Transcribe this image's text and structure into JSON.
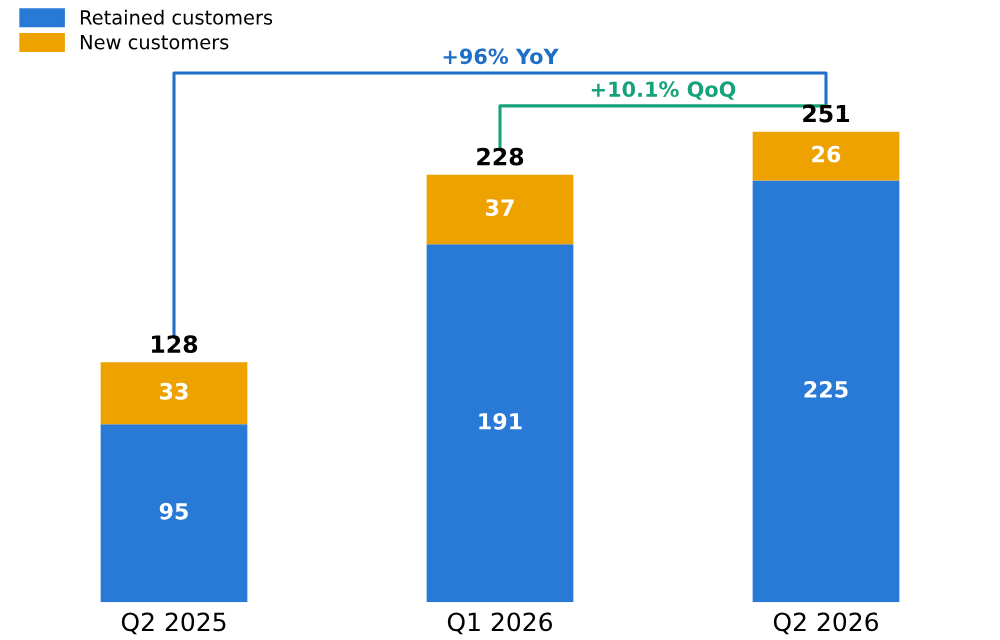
{
  "chart_data": {
    "type": "bar",
    "stacked": true,
    "categories": [
      "Q2 2025",
      "Q1 2026",
      "Q2 2026"
    ],
    "series": [
      {
        "name": "Retained customers",
        "color": "#2979d6",
        "values": [
          95,
          191,
          225
        ]
      },
      {
        "name": "New customers",
        "color": "#eea200",
        "values": [
          33,
          37,
          26
        ]
      }
    ],
    "data_labels": true,
    "totals": [
      "128",
      "228",
      "251"
    ],
    "annotations": [
      "+96% YoY",
      "+10.1% QoQ"
    ],
    "legend": "top left",
    "tick_labels": "x",
    "grid": false
  }
}
